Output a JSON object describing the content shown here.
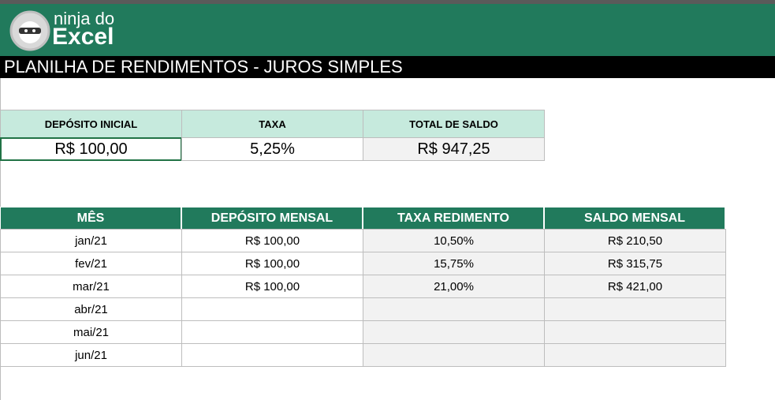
{
  "header": {
    "logo_line1": "ninja do",
    "logo_line2": "Excel",
    "title": "PLANILHA DE RENDIMENTOS - JUROS SIMPLES"
  },
  "summary": {
    "headers": [
      "DEPÓSITO INICIAL",
      "TAXA",
      "TOTAL DE SALDO"
    ],
    "values": [
      "R$ 100,00",
      "5,25%",
      "R$ 947,25"
    ]
  },
  "table": {
    "headers": [
      "MÊS",
      "DEPÓSITO MENSAL",
      "TAXA REDIMENTO",
      "SALDO MENSAL"
    ],
    "rows": [
      [
        "jan/21",
        "R$ 100,00",
        "10,50%",
        "R$ 210,50"
      ],
      [
        "fev/21",
        "R$ 100,00",
        "15,75%",
        "R$ 315,75"
      ],
      [
        "mar/21",
        "R$ 100,00",
        "21,00%",
        "R$ 421,00"
      ],
      [
        "abr/21"
      ],
      [
        "mai/21"
      ],
      [
        "jun/21"
      ]
    ]
  }
}
